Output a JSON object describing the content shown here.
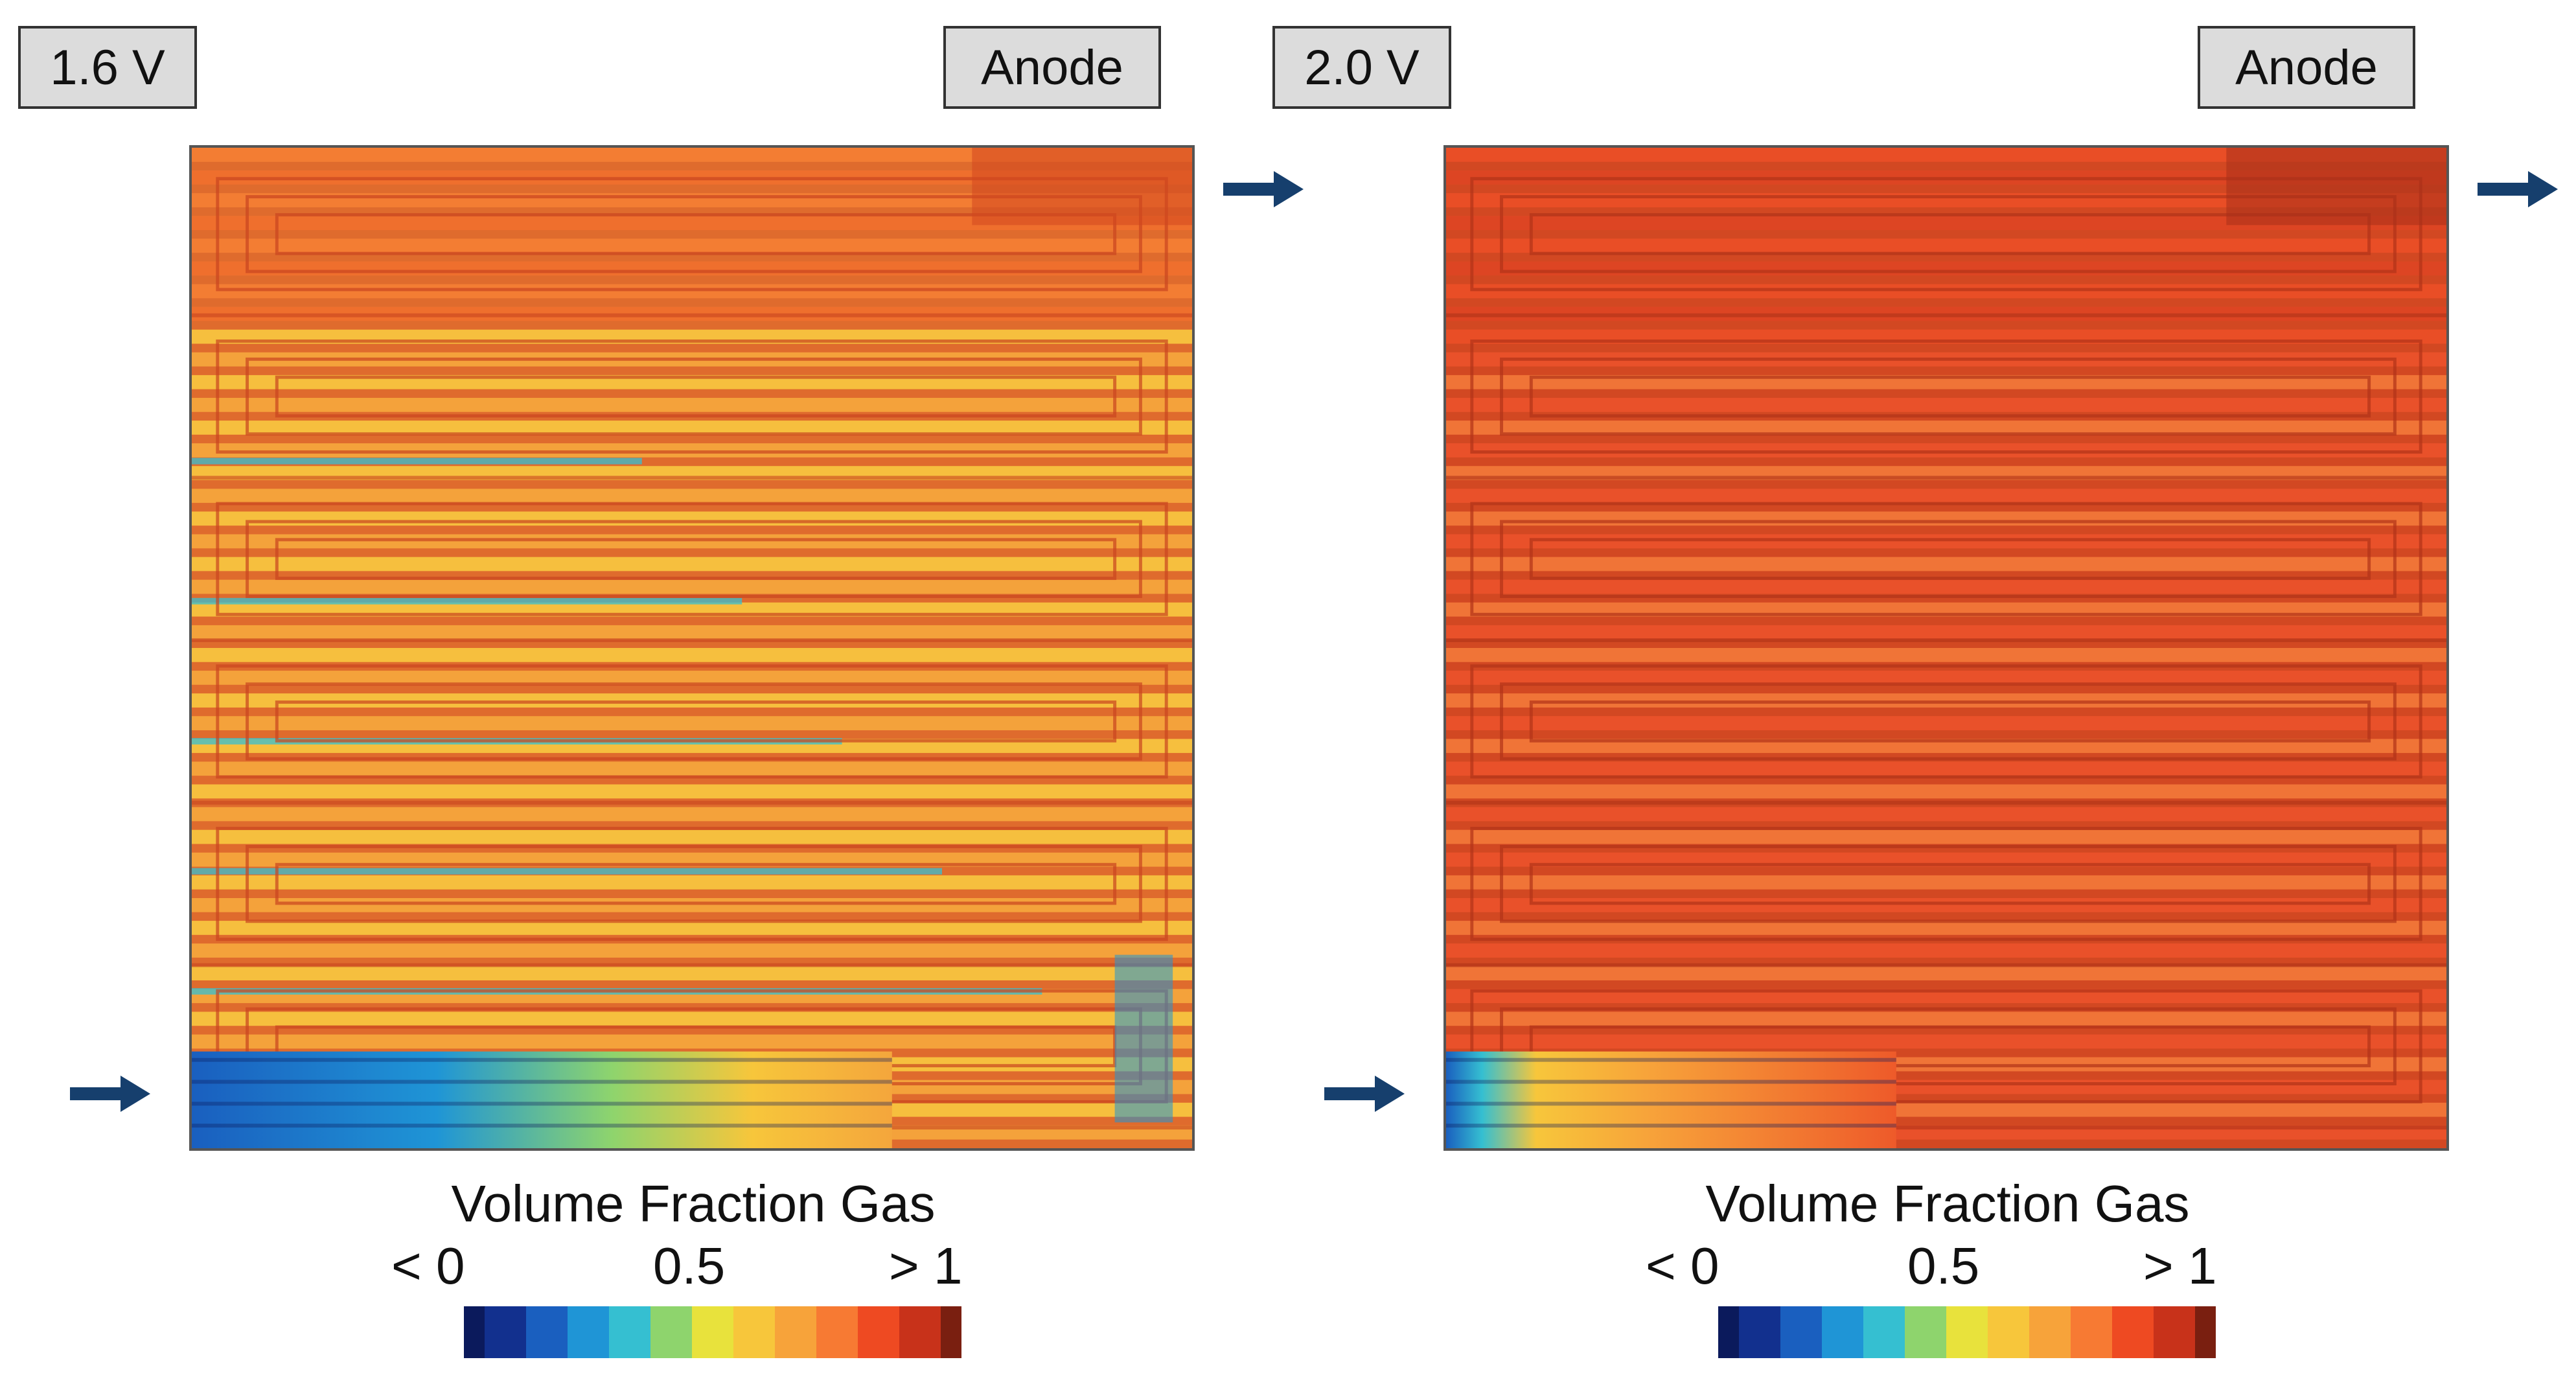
{
  "colors": {
    "arrow": "#163f6d",
    "frame": "#555555"
  },
  "colormap": [
    "#0b1a5c",
    "#12308e",
    "#1a5fbf",
    "#1f95d6",
    "#35bfd1",
    "#8ed46d",
    "#e8e23c",
    "#f7c63b",
    "#f7a33a",
    "#f77a33",
    "#ee4a22",
    "#c8321a",
    "#7a1f10"
  ],
  "panels": [
    {
      "voltage_label": "1.6 V",
      "electrode_label": "Anode",
      "field_style": "low-voltage",
      "legend": {
        "title": "Volume Fraction Gas",
        "min_label": "< 0",
        "mid_label": "0.5",
        "max_label": "> 1"
      }
    },
    {
      "voltage_label": "2.0 V",
      "electrode_label": "Anode",
      "field_style": "high-voltage",
      "legend": {
        "title": "Volume Fraction Gas",
        "min_label": "< 0",
        "mid_label": "0.5",
        "max_label": "> 1"
      }
    }
  ]
}
